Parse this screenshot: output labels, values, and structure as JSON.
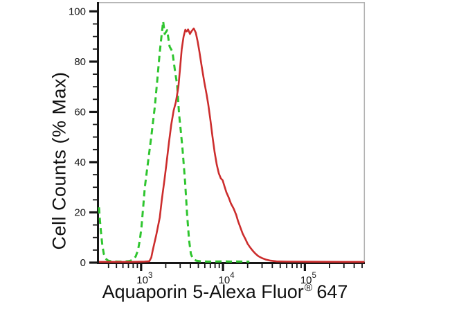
{
  "figure": {
    "ylabel": "Cell Counts (% Max)",
    "xlabel_main": "Aquaporin 5-Alexa Fluor",
    "xlabel_registered": "®",
    "xlabel_suffix": "647"
  },
  "colors": {
    "background": "#ffffff",
    "axis": "#161616",
    "plot_border": "#b3b3b3",
    "green_series": "#2fc52f",
    "red_series": "#cc2d2d"
  },
  "chart_data": {
    "type": "line",
    "description": "Flow cytometry histogram overlay: green dashed control peak left, red solid stained peak right",
    "grid": false,
    "legend": "none",
    "x_axis": {
      "scale": "log10",
      "range": [
        306,
        540000
      ],
      "major_ticks": [
        1000,
        10000,
        100000
      ],
      "major_tick_labels": [
        {
          "base": "10",
          "exp": "3"
        },
        {
          "base": "10",
          "exp": "4"
        },
        {
          "base": "10",
          "exp": "5"
        }
      ],
      "minor_tick_multipliers": [
        2,
        3,
        4,
        5,
        6,
        7,
        8,
        9
      ]
    },
    "y_axis": {
      "scale": "linear",
      "range": [
        0,
        103.7
      ],
      "major_ticks": [
        0,
        20,
        40,
        60,
        80,
        100
      ],
      "major_tick_labels": [
        "0",
        "20",
        "40",
        "60",
        "80",
        "100"
      ],
      "minor_tick_step": 5
    },
    "series": [
      {
        "id": "green-dashed-histogram",
        "style": "dashed",
        "color": "#2fc52f",
        "peak": {
          "x": 1860,
          "y": 96
        },
        "points": [
          [
            306,
            22
          ],
          [
            314,
            17
          ],
          [
            324,
            12
          ],
          [
            336,
            7
          ],
          [
            350,
            3.5
          ],
          [
            368,
            1.6
          ],
          [
            395,
            0.8
          ],
          [
            440,
            0.5
          ],
          [
            520,
            0.4
          ],
          [
            620,
            0.4
          ],
          [
            720,
            0.6
          ],
          [
            800,
            1.2
          ],
          [
            860,
            2.5
          ],
          [
            915,
            5
          ],
          [
            965,
            9
          ],
          [
            1010,
            14
          ],
          [
            1060,
            22
          ],
          [
            1110,
            30
          ],
          [
            1215,
            40
          ],
          [
            1340,
            51
          ],
          [
            1470,
            62
          ],
          [
            1580,
            73
          ],
          [
            1680,
            83
          ],
          [
            1770,
            90
          ],
          [
            1860,
            96
          ],
          [
            1940,
            91
          ],
          [
            2080,
            92.5
          ],
          [
            2230,
            86
          ],
          [
            2410,
            84
          ],
          [
            2600,
            76
          ],
          [
            2750,
            71
          ],
          [
            2910,
            59
          ],
          [
            3060,
            52
          ],
          [
            3210,
            45
          ],
          [
            3450,
            32
          ],
          [
            3650,
            19
          ],
          [
            3850,
            9
          ],
          [
            4050,
            3.5
          ],
          [
            4300,
            1.5
          ],
          [
            4700,
            0.8
          ],
          [
            5400,
            0.5
          ],
          [
            6500,
            0.4
          ],
          [
            8000,
            0.45
          ],
          [
            10000,
            0.5
          ],
          [
            12500,
            0.4
          ],
          [
            15500,
            0.45
          ],
          [
            19000,
            0.4
          ],
          [
            21000,
            0.35
          ]
        ]
      },
      {
        "id": "red-solid-histogram",
        "style": "solid",
        "color": "#cc2d2d",
        "peak": {
          "x": 3470,
          "y": 93
        },
        "points": [
          [
            306,
            0.3
          ],
          [
            800,
            0.3
          ],
          [
            1100,
            0.4
          ],
          [
            1200,
            0.5
          ],
          [
            1262,
            0.6
          ],
          [
            1330,
            2
          ],
          [
            1390,
            5
          ],
          [
            1530,
            11
          ],
          [
            1690,
            18
          ],
          [
            1790,
            25
          ],
          [
            1930,
            33
          ],
          [
            2050,
            40
          ],
          [
            2180,
            47.5
          ],
          [
            2335,
            55
          ],
          [
            2495,
            60.5
          ],
          [
            2660,
            64
          ],
          [
            2855,
            70
          ],
          [
            3000,
            78
          ],
          [
            3135,
            85
          ],
          [
            3300,
            90
          ],
          [
            3470,
            92.7
          ],
          [
            3600,
            92
          ],
          [
            3750,
            92.8
          ],
          [
            3950,
            91
          ],
          [
            4150,
            92.2
          ],
          [
            4400,
            93.2
          ],
          [
            4650,
            91.5
          ],
          [
            4900,
            88
          ],
          [
            5150,
            84
          ],
          [
            5500,
            78
          ],
          [
            5900,
            72
          ],
          [
            6300,
            67
          ],
          [
            6600,
            63
          ],
          [
            7000,
            57
          ],
          [
            7450,
            50
          ],
          [
            7900,
            44
          ],
          [
            8400,
            39
          ],
          [
            8900,
            35.5
          ],
          [
            9400,
            33.6
          ],
          [
            9900,
            32.8
          ],
          [
            10400,
            30.5
          ],
          [
            11000,
            28
          ],
          [
            11700,
            26
          ],
          [
            12500,
            23.5
          ],
          [
            13500,
            21.5
          ],
          [
            14500,
            19
          ],
          [
            15300,
            16.5
          ],
          [
            16300,
            14
          ],
          [
            17400,
            11.5
          ],
          [
            18700,
            9.5
          ],
          [
            20000,
            7.5
          ],
          [
            21500,
            6
          ],
          [
            23000,
            4.8
          ],
          [
            24800,
            3.6
          ],
          [
            27000,
            2.6
          ],
          [
            30000,
            1.8
          ],
          [
            33500,
            1.2
          ],
          [
            38000,
            0.8
          ],
          [
            45000,
            0.5
          ],
          [
            60000,
            0.4
          ],
          [
            120000,
            0.35
          ],
          [
            300000,
            0.3
          ],
          [
            535000,
            0.3
          ]
        ]
      }
    ]
  }
}
